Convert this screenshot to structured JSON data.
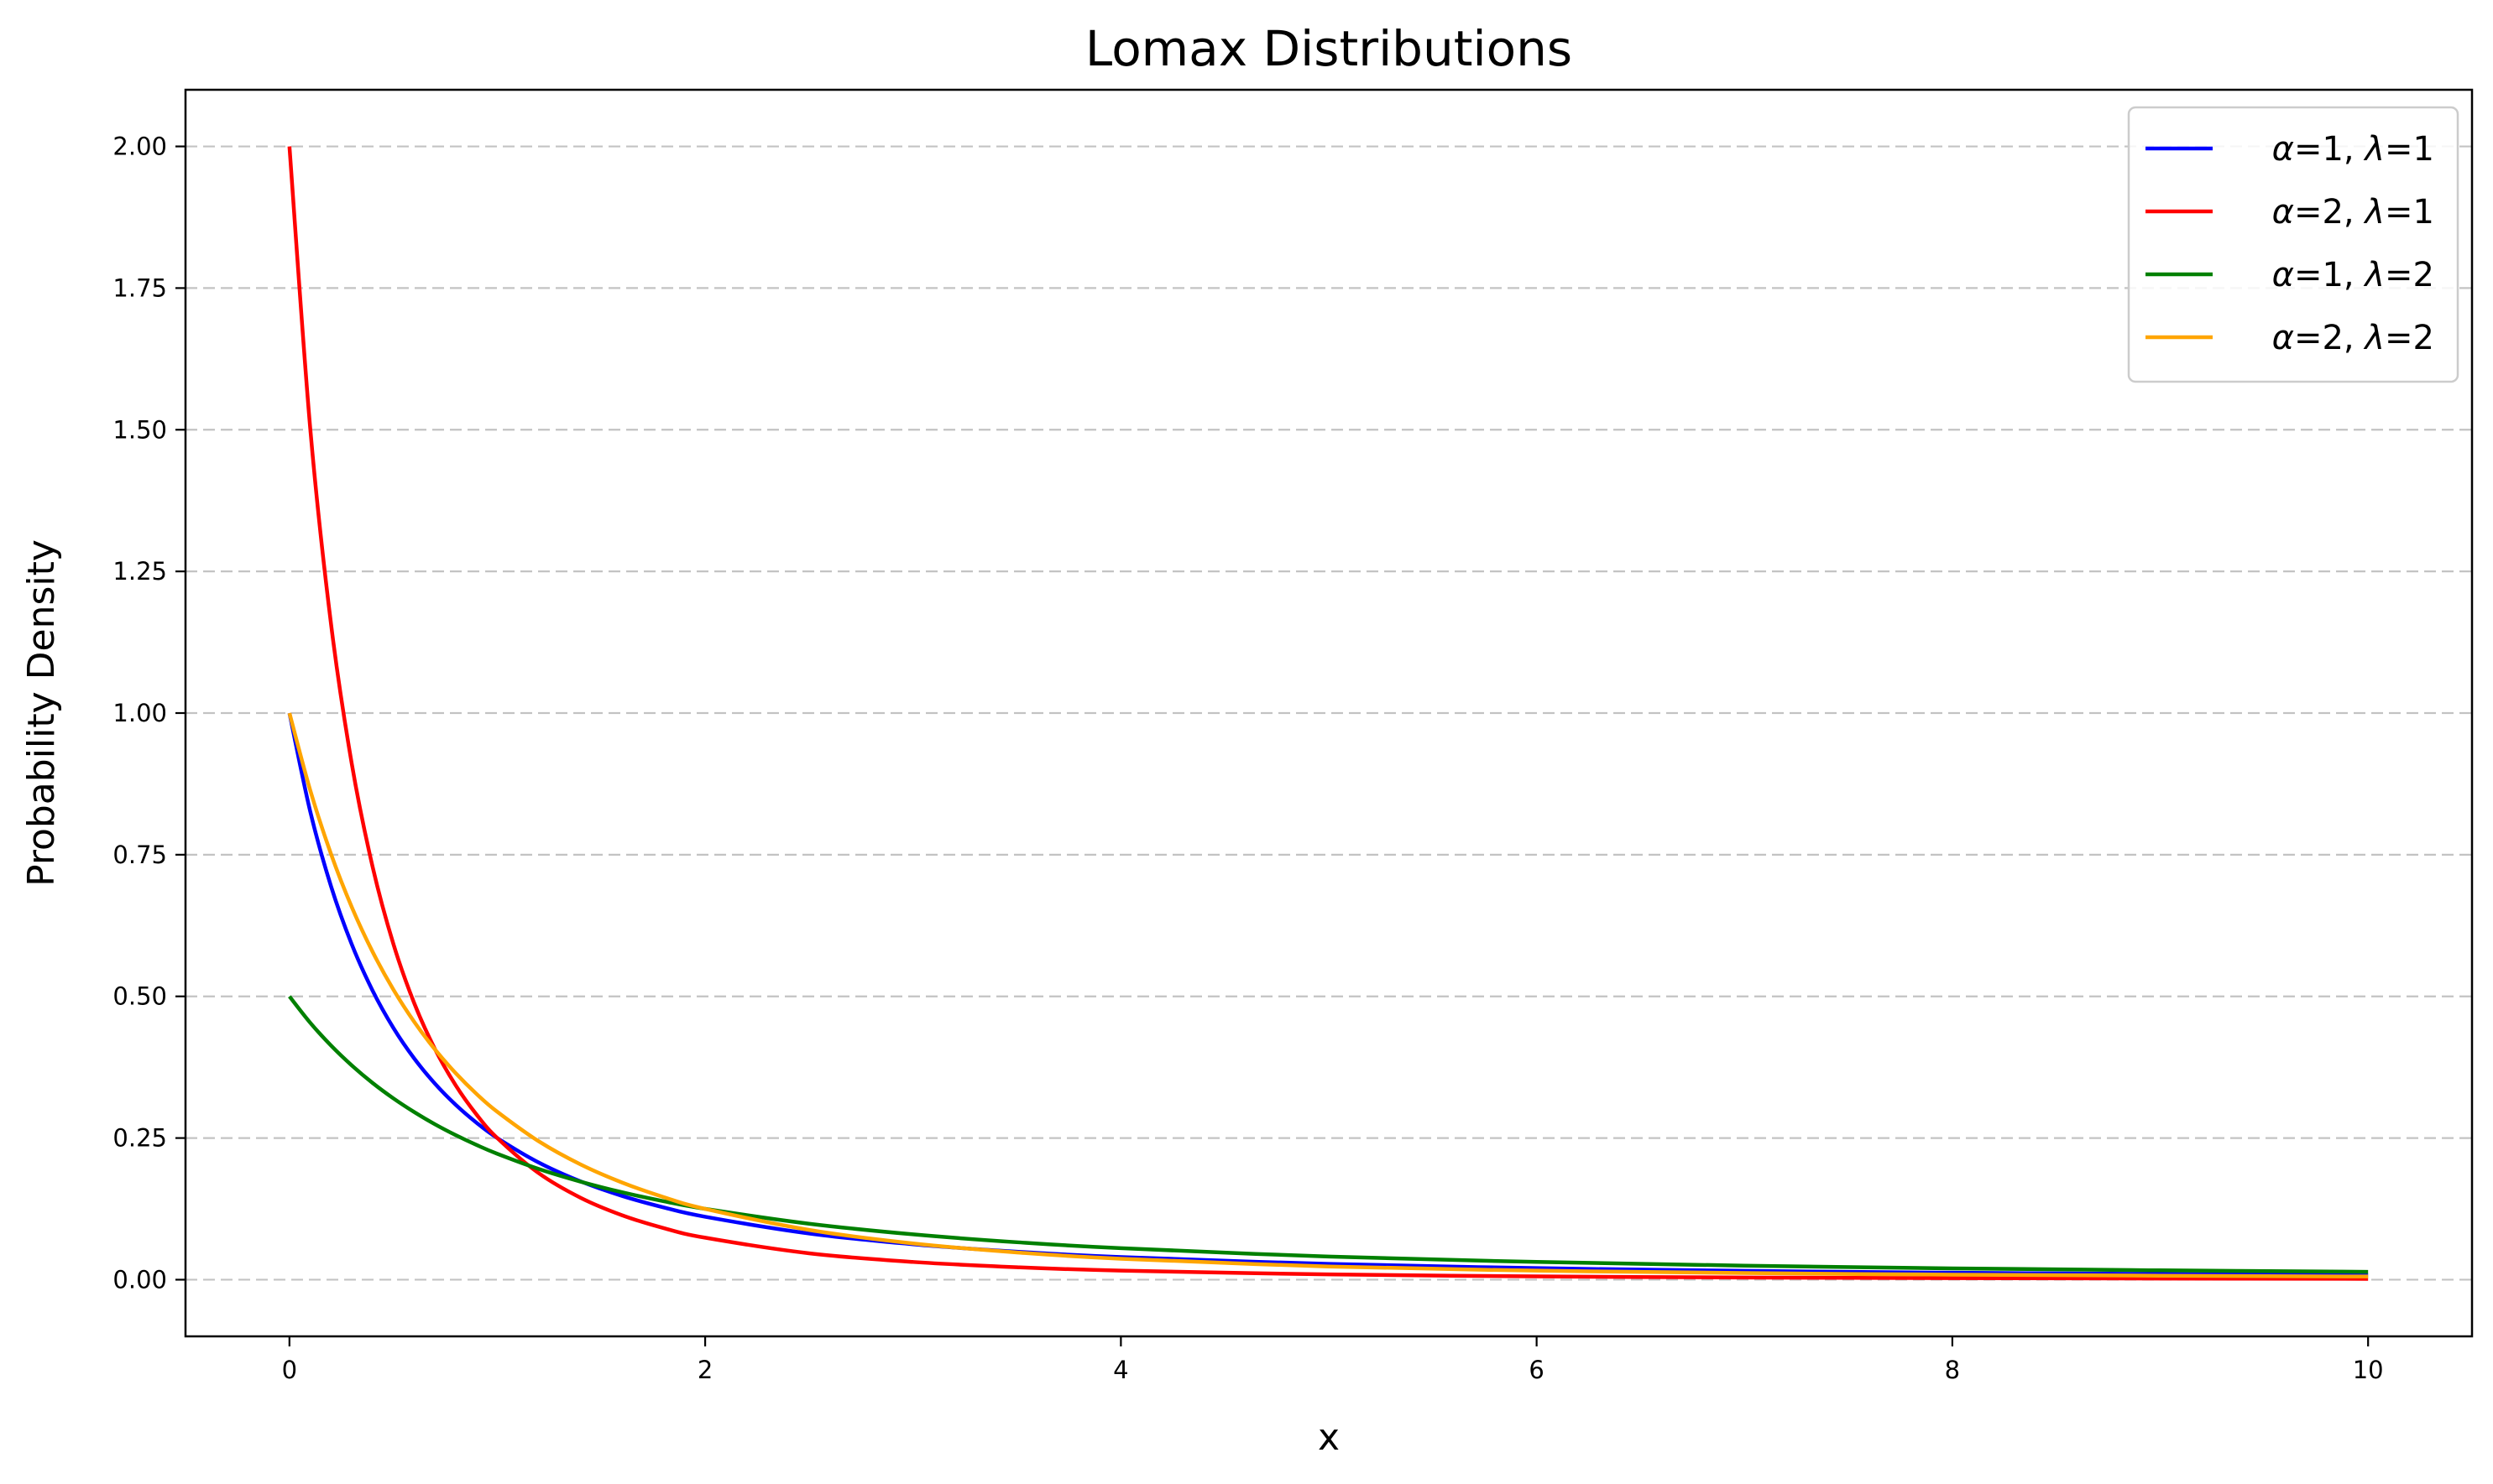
{
  "chart_data": {
    "type": "line",
    "title": "Lomax Distributions",
    "xlabel": "x",
    "ylabel": "Probability Density",
    "xlim": [
      -0.5,
      10.5
    ],
    "ylim": [
      -0.1,
      2.1
    ],
    "xticks": [
      0,
      2,
      4,
      6,
      8,
      10
    ],
    "yticks": [
      0.0,
      0.25,
      0.5,
      0.75,
      1.0,
      1.25,
      1.5,
      1.75,
      2.0
    ],
    "xtick_labels": [
      "0",
      "2",
      "4",
      "6",
      "8",
      "10"
    ],
    "ytick_labels": [
      "0.00",
      "0.25",
      "0.50",
      "0.75",
      "1.00",
      "1.25",
      "1.50",
      "1.75",
      "2.00"
    ],
    "grid": {
      "y": true,
      "x": false,
      "style": "dashed"
    },
    "legend_position": "top-right",
    "x": [
      0,
      0.1,
      0.2,
      0.3,
      0.4,
      0.5,
      0.6,
      0.7,
      0.8,
      0.9,
      1.0,
      1.2,
      1.4,
      1.6,
      1.8,
      2.0,
      2.5,
      3.0,
      3.5,
      4.0,
      5.0,
      6.0,
      7.0,
      8.0,
      9.0,
      10.0
    ],
    "series": [
      {
        "name": "α=1, λ=1",
        "alpha": "1",
        "lambda": "1",
        "color": "#0000ff",
        "values": [
          1.0,
          0.8264,
          0.6944,
          0.5917,
          0.5102,
          0.4444,
          0.3906,
          0.346,
          0.3086,
          0.277,
          0.25,
          0.2066,
          0.1736,
          0.1479,
          0.1276,
          0.1111,
          0.0816,
          0.0625,
          0.0494,
          0.04,
          0.0278,
          0.0204,
          0.0156,
          0.0123,
          0.01,
          0.0083
        ]
      },
      {
        "name": "α=2, λ=1",
        "alpha": "2",
        "lambda": "1",
        "color": "#ff0000",
        "values": [
          2.0,
          1.5026,
          1.1574,
          0.9103,
          0.7289,
          0.5926,
          0.4883,
          0.4071,
          0.3429,
          0.2915,
          0.25,
          0.1878,
          0.1447,
          0.1138,
          0.0911,
          0.0741,
          0.0466,
          0.0313,
          0.022,
          0.016,
          0.0093,
          0.0058,
          0.0039,
          0.0027,
          0.002,
          0.0015
        ]
      },
      {
        "name": "α=1, λ=2",
        "alpha": "1",
        "lambda": "2",
        "color": "#008000",
        "values": [
          0.5,
          0.4535,
          0.4132,
          0.3781,
          0.3472,
          0.32,
          0.2959,
          0.2743,
          0.2551,
          0.2378,
          0.2222,
          0.1953,
          0.1731,
          0.1543,
          0.1385,
          0.125,
          0.0988,
          0.08,
          0.0661,
          0.0556,
          0.0408,
          0.0313,
          0.0247,
          0.02,
          0.0165,
          0.0139
        ]
      },
      {
        "name": "α=2, λ=2",
        "alpha": "2",
        "lambda": "2",
        "color": "#ffa500",
        "values": [
          1.0,
          0.8638,
          0.7513,
          0.6575,
          0.5787,
          0.512,
          0.4552,
          0.4064,
          0.3644,
          0.3279,
          0.2963,
          0.2441,
          0.2035,
          0.1715,
          0.1458,
          0.125,
          0.0878,
          0.064,
          0.0481,
          0.037,
          0.0233,
          0.016,
          0.0117,
          0.0089,
          0.007,
          0.0056
        ]
      }
    ]
  }
}
